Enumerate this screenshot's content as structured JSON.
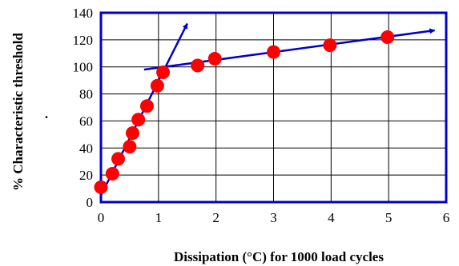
{
  "chart_data": {
    "type": "scatter",
    "title": "",
    "xlabel": "Dissipation (°C) for 1000 load cycles",
    "ylabel": "% Characteristic threshold",
    "ylabel_mark": ".",
    "xlim": [
      0,
      6
    ],
    "ylim": [
      0,
      140
    ],
    "x_ticks": [
      0,
      1,
      2,
      3,
      4,
      5,
      6
    ],
    "y_ticks": [
      0,
      20,
      40,
      60,
      80,
      100,
      120,
      140
    ],
    "grid": true,
    "colors": {
      "points": "#ff0000",
      "trend_lines": "#0000cc",
      "frame": "#0000cc",
      "grid": "#000000"
    },
    "series": [
      {
        "x": [
          0.0,
          0.2,
          0.3,
          0.5,
          0.55,
          0.65,
          0.8,
          0.98,
          1.08,
          1.68,
          1.98,
          3.0,
          3.98,
          4.98
        ],
        "y": [
          11,
          21,
          32,
          41,
          51,
          61,
          71,
          86,
          96,
          101,
          106,
          111,
          116,
          122
        ]
      }
    ],
    "trend_lines": [
      {
        "from": [
          0.0,
          5
        ],
        "to": [
          1.5,
          132
        ],
        "arrow": true
      },
      {
        "from": [
          0.75,
          98
        ],
        "to": [
          5.8,
          127
        ],
        "arrow": true
      }
    ]
  }
}
